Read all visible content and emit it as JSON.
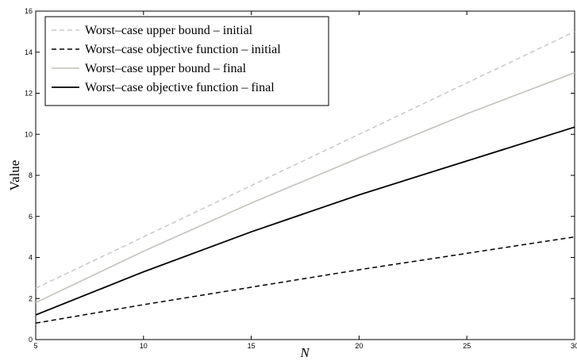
{
  "chart_data": {
    "type": "line",
    "xlabel": "N",
    "ylabel": "Value",
    "xlim": [
      5,
      30
    ],
    "ylim": [
      0,
      16
    ],
    "xticks": [
      5,
      10,
      15,
      20,
      25,
      30
    ],
    "yticks": [
      0,
      2,
      4,
      6,
      8,
      10,
      12,
      14,
      16
    ],
    "grid": false,
    "legend_position": "top-left",
    "x": [
      5,
      10,
      15,
      20,
      25,
      30
    ],
    "series": [
      {
        "name": "Worst–case upper bound – initial",
        "color": "#c8c8c8",
        "dash": "dashed",
        "values": [
          2.5,
          5.0,
          7.5,
          10.0,
          12.5,
          15.0
        ]
      },
      {
        "name": "Worst–case objective function – initial",
        "color": "#000000",
        "dash": "dashed",
        "values": [
          0.8,
          1.7,
          2.55,
          3.4,
          4.2,
          5.0
        ]
      },
      {
        "name": "Worst–case upper bound – final",
        "color": "#c8c8c0",
        "dash": "solid",
        "values": [
          1.8,
          4.3,
          6.65,
          8.85,
          11.0,
          13.0
        ]
      },
      {
        "name": "Worst–case objective function – final",
        "color": "#000000",
        "dash": "solid",
        "values": [
          1.2,
          3.3,
          5.25,
          7.05,
          8.7,
          10.35
        ]
      }
    ]
  }
}
